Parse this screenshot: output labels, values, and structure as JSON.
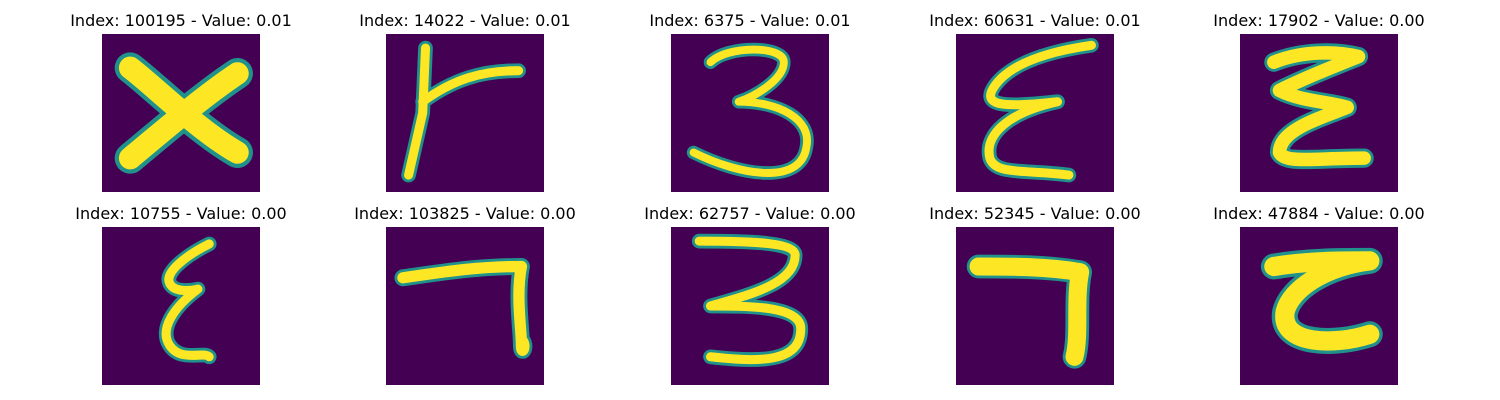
{
  "colors": {
    "background": "#440154",
    "stroke": "#fde725",
    "edge": "#21918c"
  },
  "grid": {
    "panels": [
      {
        "title": "Index: 100195 - Value: 0.01",
        "glyph": "x-shape"
      },
      {
        "title": "Index: 14022 - Value: 0.01",
        "glyph": "r-shape"
      },
      {
        "title": "Index: 6375 - Value: 0.01",
        "glyph": "three-shape"
      },
      {
        "title": "Index: 60631 - Value: 0.01",
        "glyph": "epsilon-shape"
      },
      {
        "title": "Index: 17902 - Value: 0.00",
        "glyph": "epsilon-wide-shape"
      },
      {
        "title": "Index: 10755 - Value: 0.00",
        "glyph": "epsilon-narrow-shape"
      },
      {
        "title": "Index: 103825 - Value: 0.00",
        "glyph": "seven-shape"
      },
      {
        "title": "Index: 62757 - Value: 0.00",
        "glyph": "three-tall-shape"
      },
      {
        "title": "Index: 52345 - Value: 0.00",
        "glyph": "seven-thick-shape"
      },
      {
        "title": "Index: 47884 - Value: 0.00",
        "glyph": "c-shape"
      }
    ]
  }
}
